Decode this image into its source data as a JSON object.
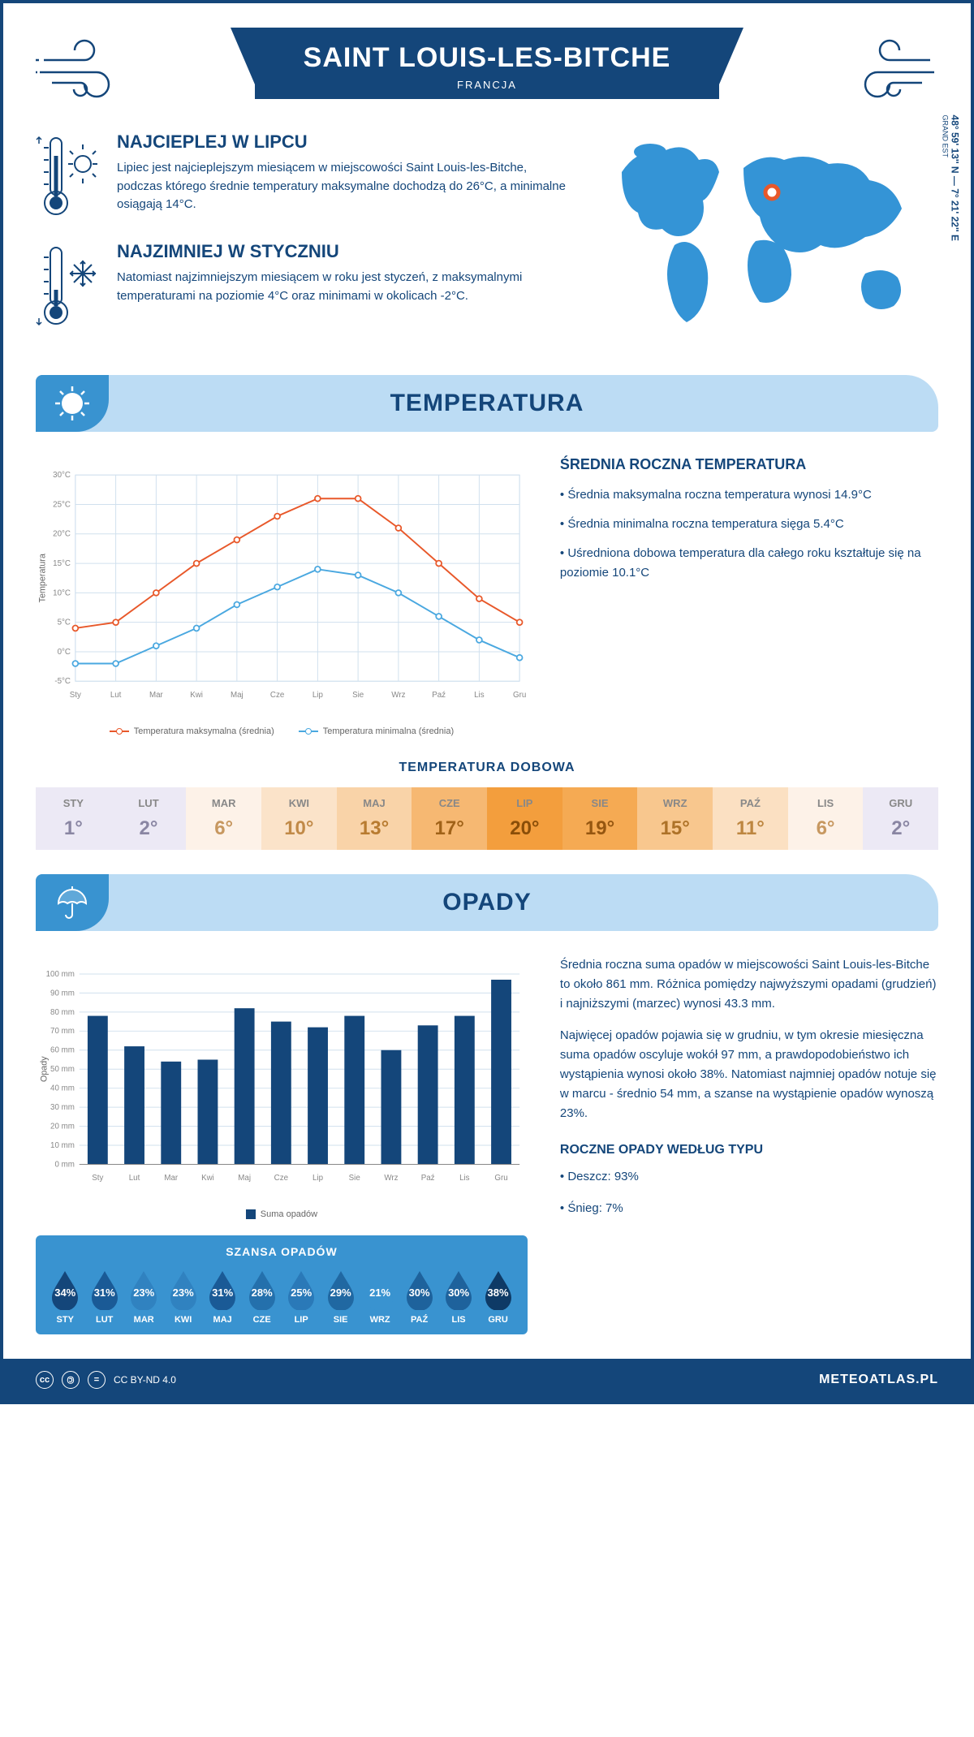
{
  "header": {
    "title": "SAINT LOUIS-LES-BITCHE",
    "country": "FRANCJA"
  },
  "coords": {
    "text": "48° 59' 13'' N — 7° 21' 22'' E",
    "region": "GRAND EST"
  },
  "warmest": {
    "title": "NAJCIEPLEJ W LIPCU",
    "text": "Lipiec jest najcieplejszym miesiącem w miejscowości Saint Louis-les-Bitche, podczas którego średnie temperatury maksymalne dochodzą do 26°C, a minimalne osiągają 14°C."
  },
  "coldest": {
    "title": "NAJZIMNIEJ W STYCZNIU",
    "text": "Natomiast najzimniejszym miesiącem w roku jest styczeń, z maksymalnymi temperaturami na poziomie 4°C oraz minimami w okolicach -2°C."
  },
  "sections": {
    "temperature": "TEMPERATURA",
    "precipitation": "OPADY"
  },
  "temp_chart": {
    "type": "line",
    "months": [
      "Sty",
      "Lut",
      "Mar",
      "Kwi",
      "Maj",
      "Cze",
      "Lip",
      "Sie",
      "Wrz",
      "Paź",
      "Lis",
      "Gru"
    ],
    "max_series": [
      4,
      5,
      10,
      15,
      19,
      23,
      26,
      26,
      21,
      15,
      9,
      5
    ],
    "min_series": [
      -2,
      -2,
      1,
      4,
      8,
      11,
      14,
      13,
      10,
      6,
      2,
      -1
    ],
    "max_color": "#e8582a",
    "min_color": "#4aa8e0",
    "ylim": [
      -5,
      30
    ],
    "ytick_step": 5,
    "y_unit": "°C",
    "y_title": "Temperatura",
    "legend_max": "Temperatura maksymalna (średnia)",
    "legend_min": "Temperatura minimalna (średnia)",
    "grid_color": "#d0e0ee",
    "background": "#ffffff"
  },
  "annual_temp": {
    "title": "ŚREDNIA ROCZNA TEMPERATURA",
    "bullets": [
      "• Średnia maksymalna roczna temperatura wynosi 14.9°C",
      "• Średnia minimalna roczna temperatura sięga 5.4°C",
      "• Uśredniona dobowa temperatura dla całego roku kształtuje się na poziomie 10.1°C"
    ]
  },
  "daily_temp": {
    "title": "TEMPERATURA DOBOWA",
    "months": [
      "STY",
      "LUT",
      "MAR",
      "KWI",
      "MAJ",
      "CZE",
      "LIP",
      "SIE",
      "WRZ",
      "PAŹ",
      "LIS",
      "GRU"
    ],
    "values": [
      "1°",
      "2°",
      "6°",
      "10°",
      "13°",
      "17°",
      "20°",
      "19°",
      "15°",
      "11°",
      "6°",
      "2°"
    ],
    "cell_bg": [
      "#ece9f5",
      "#ece9f5",
      "#fdf2e8",
      "#fbe3c9",
      "#f9d3a8",
      "#f6b872",
      "#f39e3d",
      "#f5aa53",
      "#f8c78e",
      "#fbe0c2",
      "#fdf2e8",
      "#ece9f5"
    ],
    "text_color": [
      "#8a86a3",
      "#8a86a3",
      "#c79860",
      "#c18a48",
      "#b87b30",
      "#a06218",
      "#8a4e08",
      "#955610",
      "#ad7228",
      "#bd8640",
      "#c79860",
      "#8a86a3"
    ]
  },
  "precip_chart": {
    "type": "bar",
    "months": [
      "Sty",
      "Lut",
      "Mar",
      "Kwi",
      "Maj",
      "Cze",
      "Lip",
      "Sie",
      "Wrz",
      "Paź",
      "Lis",
      "Gru"
    ],
    "values": [
      78,
      62,
      54,
      55,
      82,
      75,
      72,
      78,
      60,
      73,
      78,
      97
    ],
    "bar_color": "#14467a",
    "ylim": [
      0,
      100
    ],
    "ytick_step": 10,
    "y_unit": " mm",
    "y_title": "Opady",
    "legend": "Suma opadów",
    "grid_color": "#d0e0ee"
  },
  "precip_text": {
    "p1": "Średnia roczna suma opadów w miejscowości Saint Louis-les-Bitche to około 861 mm. Różnica pomiędzy najwyższymi opadami (grudzień) i najniższymi (marzec) wynosi 43.3 mm.",
    "p2": "Najwięcej opadów pojawia się w grudniu, w tym okresie miesięczna suma opadów oscyluje wokół 97 mm, a prawdopodobieństwo ich wystąpienia wynosi około 38%. Natomiast najmniej opadów notuje się w marcu - średnio 54 mm, a szanse na wystąpienie opadów wynoszą 23%.",
    "type_title": "ROCZNE OPADY WEDŁUG TYPU",
    "type_rain": "• Deszcz: 93%",
    "type_snow": "• Śnieg: 7%"
  },
  "chance": {
    "title": "SZANSA OPADÓW",
    "months": [
      "STY",
      "LUT",
      "MAR",
      "KWI",
      "MAJ",
      "CZE",
      "LIP",
      "SIE",
      "WRZ",
      "PAŹ",
      "LIS",
      "GRU"
    ],
    "values": [
      "34%",
      "31%",
      "23%",
      "23%",
      "31%",
      "28%",
      "25%",
      "29%",
      "21%",
      "30%",
      "30%",
      "38%"
    ],
    "drop_colors": [
      "#14467a",
      "#1a5a96",
      "#3082c0",
      "#3082c0",
      "#1a5a96",
      "#2470ac",
      "#2a79b8",
      "#2068a2",
      "#3993d0",
      "#1e629c",
      "#1e629c",
      "#0e3a66"
    ]
  },
  "footer": {
    "license": "CC BY-ND 4.0",
    "site": "METEOATLAS.PL"
  },
  "colors": {
    "primary": "#14467a",
    "light_blue": "#bcdcf4",
    "mid_blue": "#3993d0",
    "map_blue": "#3494d6",
    "marker": "#e8582a"
  }
}
